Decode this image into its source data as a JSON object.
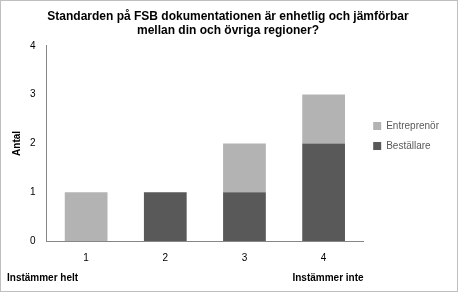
{
  "chart_data": {
    "type": "bar",
    "title": "Standarden på FSB dokumentationen är enhetlig och jämförbar mellan din och övriga regioner?",
    "y_label": "Antal",
    "categories": [
      "1",
      "2",
      "3",
      "4"
    ],
    "series": [
      {
        "name": "Beställare",
        "color": "#595959",
        "values": [
          0,
          1,
          1,
          2
        ]
      },
      {
        "name": "Entreprenör",
        "color": "#b3b3b3",
        "values": [
          1,
          0,
          1,
          1
        ]
      }
    ],
    "stacked": true,
    "ylim": [
      0,
      4
    ],
    "yticks": [
      0,
      1,
      2,
      3,
      4
    ],
    "grid": false,
    "legend": "right",
    "annotations": [
      {
        "text": "Instämmer helt",
        "category": "1"
      },
      {
        "text": "Instämmer inte",
        "category": "4"
      }
    ]
  }
}
